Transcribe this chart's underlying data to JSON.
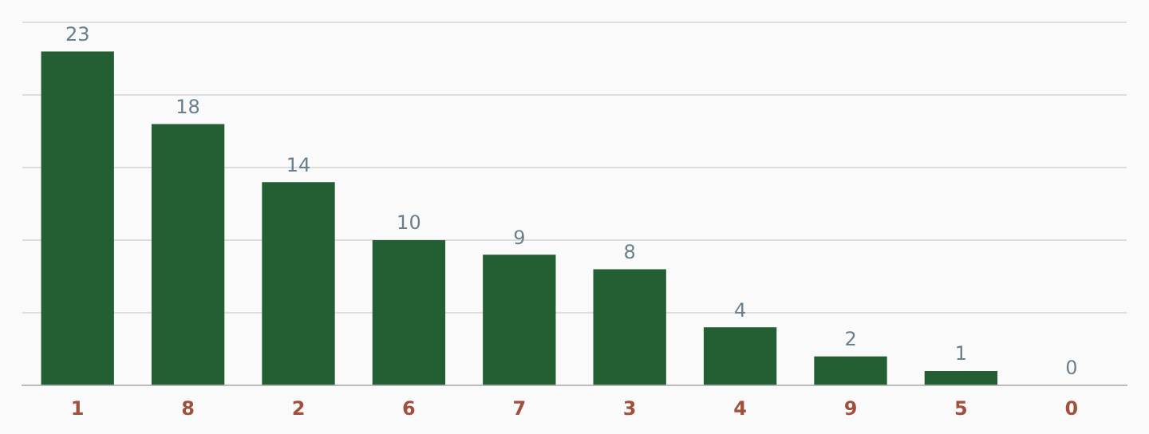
{
  "chart_data": {
    "type": "bar",
    "categories": [
      "1",
      "8",
      "2",
      "6",
      "7",
      "3",
      "4",
      "9",
      "5",
      "0"
    ],
    "values": [
      23,
      18,
      14,
      10,
      9,
      8,
      4,
      2,
      1,
      0
    ],
    "color": "#245f33",
    "data_labels": true,
    "ylim": [
      0,
      25
    ],
    "yticks": [
      {
        "value": 0,
        "label": null
      },
      {
        "value": 5,
        "label": null
      },
      {
        "value": 10,
        "label": null
      },
      {
        "value": 15,
        "label": null
      },
      {
        "value": 20,
        "label": null
      },
      {
        "value": 25,
        "label": null
      }
    ],
    "grid": "y",
    "legend": false,
    "tick_labels": "x"
  }
}
